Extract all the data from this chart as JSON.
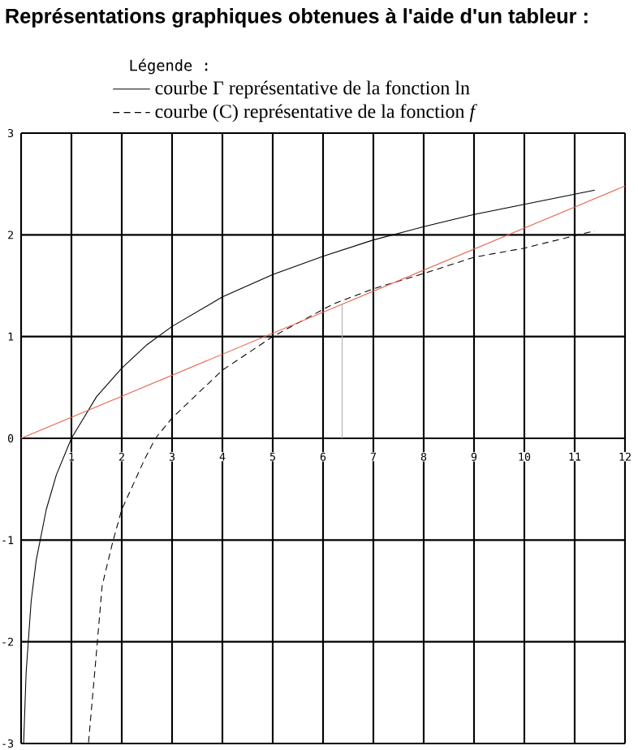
{
  "chart_data": {
    "type": "line",
    "title": "Représentations graphiques obtenues à l'aide d'un tableur :",
    "legend_title": "Légende :",
    "legend": "top",
    "xlim": [
      0,
      12
    ],
    "ylim": [
      -3,
      3
    ],
    "xticks": [
      1,
      2,
      3,
      4,
      5,
      6,
      7,
      8,
      9,
      10,
      11,
      12
    ],
    "yticks": [
      -3,
      -2,
      -1,
      0,
      1,
      2,
      3
    ],
    "grid": true,
    "marker": "none",
    "series": [
      {
        "name": "courbe Γ représentative de la fonction ln",
        "color": "#000000",
        "line_style": "solid",
        "x": [
          0.05,
          0.1,
          0.2,
          0.3,
          0.5,
          0.7,
          1,
          1.5,
          2,
          2.5,
          3,
          4,
          5,
          6,
          7,
          8,
          9,
          10,
          11,
          11.4
        ],
        "values": [
          -3.0,
          -2.3,
          -1.6,
          -1.2,
          -0.7,
          -0.36,
          0,
          0.41,
          0.69,
          0.92,
          1.1,
          1.39,
          1.61,
          1.79,
          1.95,
          2.08,
          2.2,
          2.3,
          2.4,
          2.44
        ]
      },
      {
        "name": "courbe (C) représentative de la fonction *f*",
        "color": "#000000",
        "line_style": "dashed",
        "x": [
          1.34,
          1.5,
          1.61,
          1.82,
          2,
          2.46,
          2.67,
          3,
          4,
          5,
          6.2,
          7,
          8,
          9,
          10,
          11.4
        ],
        "values": [
          -2.99,
          -2.09,
          -1.45,
          -1.02,
          -0.7,
          -0.2,
          0,
          0.2,
          0.67,
          1.0,
          1.32,
          1.47,
          1.62,
          1.78,
          1.87,
          2.04
        ]
      },
      {
        "color": "#e8604c",
        "line_style": "solid",
        "x": [
          0,
          12
        ],
        "values": [
          0,
          2.48
        ]
      },
      {
        "color": "#b0b0b0",
        "line_style": "solid",
        "x": [
          6.38,
          6.38
        ],
        "values": [
          0,
          1.32
        ]
      }
    ]
  }
}
